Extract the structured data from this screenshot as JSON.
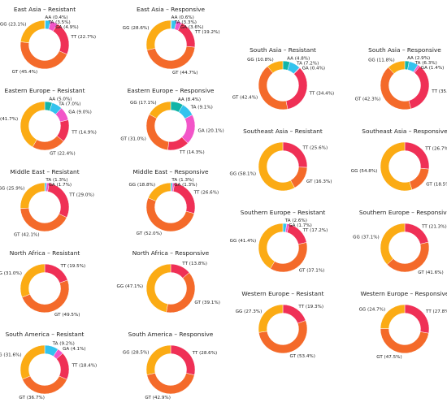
{
  "chart_data": [
    {
      "type": "pie",
      "title": "East Asia – Resistant",
      "categories": [
        "AA",
        "TA",
        "GA",
        "TT",
        "GT",
        "GG"
      ],
      "values": [
        0.4,
        3.5,
        4.9,
        22.7,
        45.4,
        23.1
      ],
      "labels": [
        "AA (0.4%)",
        "TA (3.5%)",
        "GA (4.9%)",
        "TT (22.7%)",
        "GT (45.4%)",
        "GG (23.1%)"
      ]
    },
    {
      "type": "pie",
      "title": "East Asia – Responsive",
      "categories": [
        "AA",
        "TA",
        "GA",
        "TT",
        "GT",
        "GG"
      ],
      "values": [
        0.6,
        3.3,
        3.6,
        19.2,
        44.7,
        28.6
      ],
      "labels": [
        "AA (0.6%)",
        "TA (3.3%)",
        "GA (3.6%)",
        "TT (19.2%)",
        "GT (44.7%)",
        "GG (28.6%)"
      ]
    },
    {
      "type": "pie",
      "title": "Eastern Europe – Resistant",
      "categories": [
        "AA",
        "TA",
        "GA",
        "TT",
        "GT",
        "GG"
      ],
      "values": [
        5.0,
        7.0,
        9.0,
        14.9,
        22.4,
        41.7
      ],
      "labels": [
        "AA (5.0%)",
        "TA (7.0%)",
        "GA (9.0%)",
        "TT (14.9%)",
        "GT (22.4%)",
        "GG (41.7%)"
      ]
    },
    {
      "type": "pie",
      "title": "Eastern Europe – Responsive",
      "categories": [
        "AA",
        "TA",
        "GA",
        "TT",
        "GT",
        "GG"
      ],
      "values": [
        8.4,
        9.1,
        20.1,
        14.3,
        31.0,
        17.1
      ],
      "labels": [
        "AA (8.4%)",
        "TA (9.1%)",
        "GA (20.1%)",
        "TT (14.3%)",
        "GT (31.0%)",
        "GG (17.1%)"
      ]
    },
    {
      "type": "pie",
      "title": "Middle East – Resistant",
      "categories": [
        "TA",
        "GA",
        "TT",
        "GT",
        "GG"
      ],
      "values": [
        1.3,
        1.7,
        29.0,
        42.1,
        25.9
      ],
      "labels": [
        "TA (1.3%)",
        "GA (1.7%)",
        "TT (29.0%)",
        "GT (42.1%)",
        "GG (25.9%)"
      ]
    },
    {
      "type": "pie",
      "title": "Middle East – Responsive",
      "categories": [
        "TA",
        "GA",
        "TT",
        "GT",
        "GG"
      ],
      "values": [
        1.3,
        1.3,
        26.6,
        52.0,
        18.8
      ],
      "labels": [
        "TA (1.3%)",
        "GA (1.3%)",
        "TT (26.6%)",
        "GT (52.0%)",
        "GG (18.8%)"
      ]
    },
    {
      "type": "pie",
      "title": "North Africa – Resistant",
      "categories": [
        "TT",
        "GT",
        "GG"
      ],
      "values": [
        19.5,
        49.5,
        31.0
      ],
      "labels": [
        "TT (19.5%)",
        "GT (49.5%)",
        "GG (31.0%)"
      ]
    },
    {
      "type": "pie",
      "title": "North Africa – Responsive",
      "categories": [
        "TT",
        "GT",
        "GG"
      ],
      "values": [
        13.8,
        39.1,
        47.1
      ],
      "labels": [
        "TT (13.8%)",
        "GT (39.1%)",
        "GG (47.1%)"
      ]
    },
    {
      "type": "pie",
      "title": "South America – Resistant",
      "categories": [
        "TA",
        "GA",
        "TT",
        "GT",
        "GG"
      ],
      "values": [
        9.2,
        4.1,
        18.4,
        36.7,
        31.6
      ],
      "labels": [
        "TA (9.2%)",
        "GA (4.1%)",
        "TT (18.4%)",
        "GT (36.7%)",
        "GG (31.6%)"
      ]
    },
    {
      "type": "pie",
      "title": "South America – Responsive",
      "categories": [
        "TT",
        "GT",
        "GG"
      ],
      "values": [
        28.6,
        42.9,
        28.5
      ],
      "labels": [
        "TT (28.6%)",
        "GT (42.9%)",
        "GG (28.5%)"
      ]
    },
    {
      "type": "pie",
      "title": "South Asia – Resistant",
      "categories": [
        "AA",
        "TA",
        "GA",
        "TT",
        "GT",
        "GG"
      ],
      "values": [
        4.8,
        7.2,
        0.4,
        34.4,
        42.4,
        10.8
      ],
      "labels": [
        "AA (4.8%)",
        "TA (7.2%)",
        "GA (0.4%)",
        "TT (34.4%)",
        "GT (42.4%)",
        "GG (10.8%)"
      ]
    },
    {
      "type": "pie",
      "title": "South Asia – Responsive",
      "categories": [
        "AA",
        "TA",
        "GA",
        "TT",
        "GT",
        "GG"
      ],
      "values": [
        2.9,
        6.3,
        1.4,
        35.3,
        42.3,
        11.8
      ],
      "labels": [
        "AA (2.9%)",
        "TA (6.3%)",
        "GA (1.4%)",
        "TT (35.3%)",
        "GT (42.3%)",
        "GG (11.8%)"
      ]
    },
    {
      "type": "pie",
      "title": "Southeast Asia – Resistant",
      "categories": [
        "TT",
        "GT",
        "GG"
      ],
      "values": [
        25.6,
        16.3,
        58.1
      ],
      "labels": [
        "TT (25.6%)",
        "GT (16.3%)",
        "GG (58.1%)"
      ]
    },
    {
      "type": "pie",
      "title": "Southeast Asia – Responsive",
      "categories": [
        "TT",
        "GT",
        "GG"
      ],
      "values": [
        26.7,
        18.5,
        54.8
      ],
      "labels": [
        "TT (26.7%)",
        "GT (18.5%)",
        "GG (54.8%)"
      ]
    },
    {
      "type": "pie",
      "title": "Southern Europe – Resistant",
      "categories": [
        "TA",
        "GA",
        "TT",
        "GT",
        "GG"
      ],
      "values": [
        2.6,
        1.7,
        17.2,
        37.1,
        41.4
      ],
      "labels": [
        "TA (2.6%)",
        "GA (1.7%)",
        "TT (17.2%)",
        "GT (37.1%)",
        "GG (41.4%)"
      ]
    },
    {
      "type": "pie",
      "title": "Southern Europe – Responsive",
      "categories": [
        "TT",
        "GT",
        "GG"
      ],
      "values": [
        21.3,
        41.6,
        37.1
      ],
      "labels": [
        "TT (21.3%)",
        "GT (41.6%)",
        "GG (37.1%)"
      ]
    },
    {
      "type": "pie",
      "title": "Western Europe – Resistant",
      "categories": [
        "TT",
        "GT",
        "GG"
      ],
      "values": [
        19.3,
        53.4,
        27.3
      ],
      "labels": [
        "TT (19.3%)",
        "GT (53.4%)",
        "GG (27.3%)"
      ]
    },
    {
      "type": "pie",
      "title": "Western Europe – Responsive",
      "categories": [
        "TT",
        "GT",
        "GG"
      ],
      "values": [
        27.8,
        47.5,
        24.7
      ],
      "labels": [
        "TT (27.8%)",
        "GT (47.5%)",
        "GG (24.7%)"
      ]
    }
  ],
  "colors": {
    "AA": "#12b5a8",
    "TA": "#33c3ee",
    "GA": "#f255c8",
    "TT": "#ef3056",
    "GT": "#f46a2a",
    "GG": "#fbab14"
  }
}
